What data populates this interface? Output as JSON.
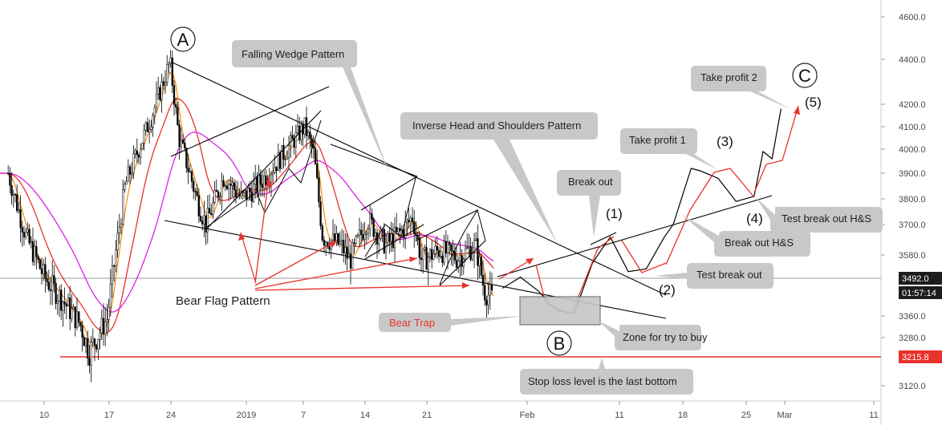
{
  "colors": {
    "candle": "#000000",
    "ma_fast": "#f7941d",
    "ma_mid": "#e8322b",
    "ma_slow": "#e020e6",
    "annotation": "#e8322b",
    "support_line": "#e8322b",
    "callout_bg": "#c8c8c8"
  },
  "chart_data": {
    "type": "candlestick",
    "grid": false,
    "legend": "none",
    "ylim": [
      3090,
      4660
    ],
    "y_ticks": [
      "4600.0",
      "4400.0",
      "4200.0",
      "4100.0",
      "4000.0",
      "3900.0",
      "3800.0",
      "3700.0",
      "3580.0",
      "3360.0",
      "3280.0",
      "3120.0"
    ],
    "x_ticks": [
      "10",
      "17",
      "24",
      "2019",
      "7",
      "14",
      "21",
      "Feb",
      "11",
      "18",
      "25",
      "Mar",
      "11"
    ],
    "price_labels": [
      {
        "value": "3492.0",
        "sub": "01:57:14"
      },
      {
        "value": "3215.8"
      }
    ],
    "support_level": 3215.8,
    "series": [
      {
        "name": "price",
        "points": [
          [
            "2018-12-06",
            3900
          ],
          [
            "2018-12-08",
            3650
          ],
          [
            "2018-12-10",
            3500
          ],
          [
            "2018-12-12",
            3420
          ],
          [
            "2018-12-14",
            3330
          ],
          [
            "2018-12-15",
            3230
          ],
          [
            "2018-12-17",
            3350
          ],
          [
            "2018-12-18",
            3600
          ],
          [
            "2018-12-19",
            3850
          ],
          [
            "2018-12-21",
            4050
          ],
          [
            "2018-12-22",
            4150
          ],
          [
            "2018-12-24",
            4390
          ],
          [
            "2018-12-25",
            4050
          ],
          [
            "2018-12-27",
            3800
          ],
          [
            "2018-12-28",
            3700
          ],
          [
            "2018-12-30",
            3890
          ],
          [
            "2019-01-01",
            3800
          ],
          [
            "2019-01-03",
            3860
          ],
          [
            "2019-01-05",
            3950
          ],
          [
            "2019-01-06",
            4000
          ],
          [
            "2019-01-07",
            4050
          ],
          [
            "2019-01-08",
            4100
          ],
          [
            "2019-01-09",
            3980
          ],
          [
            "2019-01-10",
            3650
          ],
          [
            "2019-01-12",
            3620
          ],
          [
            "2019-01-13",
            3560
          ],
          [
            "2019-01-15",
            3720
          ],
          [
            "2019-01-17",
            3620
          ],
          [
            "2019-01-19",
            3680
          ],
          [
            "2019-01-20",
            3730
          ],
          [
            "2019-01-21",
            3560
          ],
          [
            "2019-01-23",
            3600
          ],
          [
            "2019-01-25",
            3570
          ],
          [
            "2019-01-27",
            3620
          ],
          [
            "2019-01-28",
            3450
          ],
          [
            "2019-01-29",
            3420
          ]
        ]
      },
      {
        "name": "projection",
        "points": [
          [
            "2019-01-30",
            3460
          ],
          [
            "2019-02-01",
            3500
          ],
          [
            "2019-02-03",
            3450
          ],
          [
            "2019-02-05",
            3380
          ],
          [
            "2019-02-07",
            3370
          ],
          [
            "2019-02-09",
            3550
          ],
          [
            "2019-02-10",
            3600
          ],
          [
            "2019-02-11",
            3650
          ],
          [
            "2019-02-13",
            3520
          ],
          [
            "2019-02-15",
            3530
          ],
          [
            "2019-02-17",
            3650
          ],
          [
            "2019-02-18",
            3700
          ],
          [
            "2019-02-20",
            3920
          ],
          [
            "2019-02-21",
            3910
          ],
          [
            "2019-02-23",
            3880
          ],
          [
            "2019-02-25",
            3790
          ],
          [
            "2019-02-27",
            3810
          ],
          [
            "2019-02-28",
            3990
          ],
          [
            "2019-03-01",
            3960
          ],
          [
            "2019-03-02",
            4180
          ]
        ]
      }
    ],
    "annotations": {
      "callouts": [
        {
          "id": "falling-wedge",
          "text": "Falling Wedge Pattern"
        },
        {
          "id": "inverse-hs",
          "text": "Inverse Head and Shoulders Pattern"
        },
        {
          "id": "break-out",
          "text": "Break out"
        },
        {
          "id": "take-profit-1",
          "text": "Take profit 1"
        },
        {
          "id": "take-profit-2",
          "text": "Take profit 2"
        },
        {
          "id": "test-break-out-hs",
          "text": "Test break out H&S"
        },
        {
          "id": "break-out-hs",
          "text": "Break out H&S"
        },
        {
          "id": "test-break-out",
          "text": "Test break out"
        },
        {
          "id": "zone-buy",
          "text": "Zone for try to buy"
        },
        {
          "id": "stop-loss",
          "text": "Stop loss level is the last bottom"
        },
        {
          "id": "bear-trap",
          "text": "Bear Trap"
        }
      ],
      "bear_flag_label": "Bear Flag Pattern",
      "circle_labels": [
        "A",
        "B",
        "C"
      ],
      "wave_labels": [
        "(1)",
        "(2)",
        "(3)",
        "(4)",
        "(5)"
      ]
    }
  }
}
